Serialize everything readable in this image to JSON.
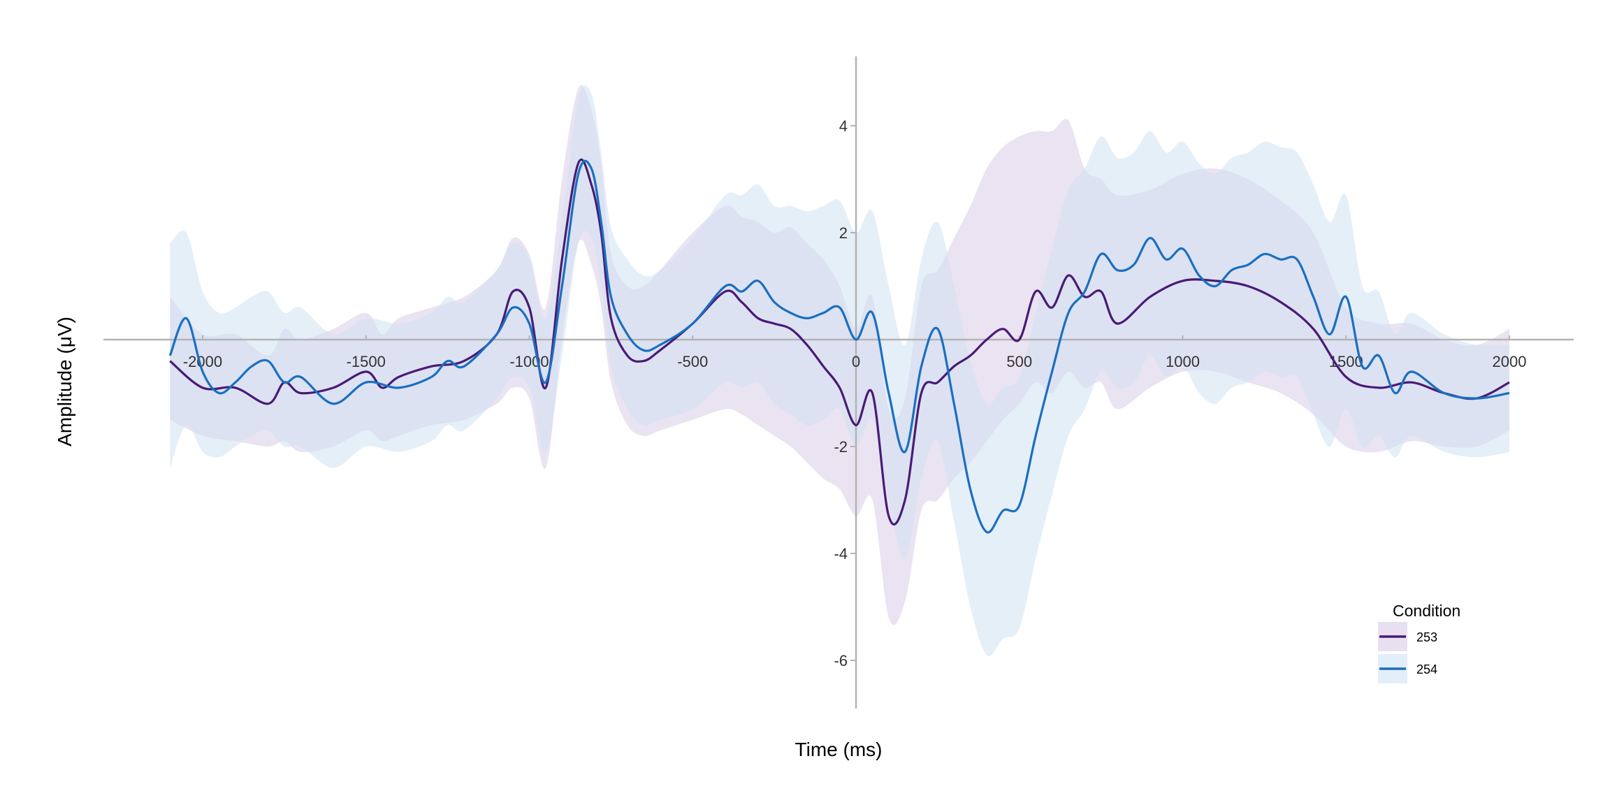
{
  "chart_data": {
    "type": "line",
    "title": "",
    "xlabel": "Time (ms)",
    "ylabel": "Amplitude (μV)",
    "xlim": [
      -2100,
      2200
    ],
    "ylim": [
      -6.9,
      5.3
    ],
    "x_ticks": [
      -2000,
      -1500,
      -1000,
      -500,
      0,
      500,
      1000,
      1500,
      2000
    ],
    "y_ticks": [
      -6,
      -4,
      -2,
      2,
      4
    ],
    "legend": {
      "title": "Condition",
      "position": "bottom-right",
      "entries": [
        "253",
        "254"
      ]
    },
    "series": [
      {
        "name": "253",
        "color": "#4a1a75",
        "band_color": "#d9cce6",
        "x": [
          -2100,
          -2000,
          -1900,
          -1800,
          -1750,
          -1700,
          -1600,
          -1500,
          -1450,
          -1400,
          -1300,
          -1200,
          -1100,
          -1050,
          -1000,
          -950,
          -900,
          -850,
          -810,
          -780,
          -750,
          -700,
          -650,
          -600,
          -500,
          -400,
          -350,
          -300,
          -250,
          -200,
          -150,
          -100,
          -50,
          0,
          50,
          100,
          150,
          200,
          250,
          300,
          350,
          400,
          450,
          500,
          550,
          600,
          650,
          700,
          750,
          800,
          900,
          1000,
          1100,
          1200,
          1300,
          1400,
          1500,
          1600,
          1700,
          1800,
          1900,
          2000
        ],
        "y": [
          -0.4,
          -0.9,
          -0.9,
          -1.2,
          -0.8,
          -1.0,
          -0.9,
          -0.6,
          -0.9,
          -0.7,
          -0.5,
          -0.4,
          0.1,
          0.9,
          0.6,
          -0.9,
          1.5,
          3.3,
          2.9,
          2.0,
          0.4,
          -0.3,
          -0.4,
          -0.2,
          0.3,
          0.9,
          0.7,
          0.4,
          0.3,
          0.2,
          -0.1,
          -0.5,
          -0.9,
          -1.6,
          -1.0,
          -3.3,
          -3.0,
          -1.0,
          -0.8,
          -0.5,
          -0.3,
          0.0,
          0.2,
          0.0,
          0.9,
          0.6,
          1.2,
          0.8,
          0.9,
          0.3,
          0.8,
          1.1,
          1.1,
          1.0,
          0.7,
          0.2,
          -0.7,
          -0.9,
          -0.8,
          -1.0,
          -1.1,
          -0.8
        ],
        "lower": [
          -1.5,
          -1.8,
          -1.9,
          -2.0,
          -1.9,
          -2.1,
          -2.0,
          -1.7,
          -1.9,
          -1.8,
          -1.6,
          -1.5,
          -1.2,
          -0.9,
          -1.1,
          -2.4,
          0.0,
          1.8,
          1.4,
          0.6,
          -0.8,
          -1.6,
          -1.8,
          -1.7,
          -1.5,
          -1.3,
          -1.4,
          -1.6,
          -1.8,
          -2.0,
          -2.3,
          -2.6,
          -2.8,
          -3.3,
          -3.0,
          -5.2,
          -4.9,
          -3.2,
          -3.0,
          -2.6,
          -2.3,
          -1.9,
          -1.5,
          -1.2,
          -0.8,
          -1.0,
          -0.6,
          -0.9,
          -0.8,
          -1.3,
          -0.9,
          -0.6,
          -0.6,
          -0.8,
          -1.0,
          -1.4,
          -2.0,
          -2.1,
          -1.9,
          -2.0,
          -2.0,
          -1.7
        ],
        "upper": [
          0.8,
          0.1,
          0.1,
          -0.3,
          0.2,
          0.0,
          0.2,
          0.5,
          0.1,
          0.4,
          0.6,
          0.8,
          1.3,
          1.9,
          1.6,
          0.6,
          3.0,
          4.7,
          4.3,
          3.3,
          1.6,
          1.0,
          1.0,
          1.3,
          2.0,
          2.5,
          2.3,
          2.2,
          2.0,
          2.1,
          1.8,
          1.5,
          1.0,
          0.2,
          0.8,
          -1.3,
          -1.1,
          1.0,
          1.3,
          1.9,
          2.5,
          3.2,
          3.6,
          3.8,
          3.9,
          3.9,
          4.1,
          3.2,
          3.0,
          2.7,
          2.8,
          3.1,
          3.2,
          3.0,
          2.6,
          2.0,
          0.6,
          0.3,
          0.3,
          0.0,
          -0.1,
          0.2
        ]
      },
      {
        "name": "254",
        "color": "#1a6fc0",
        "band_color": "#cfe2f3",
        "x": [
          -2100,
          -2050,
          -2000,
          -1950,
          -1900,
          -1850,
          -1800,
          -1750,
          -1700,
          -1600,
          -1500,
          -1400,
          -1300,
          -1250,
          -1200,
          -1100,
          -1050,
          -1000,
          -950,
          -900,
          -850,
          -810,
          -780,
          -750,
          -700,
          -650,
          -600,
          -500,
          -400,
          -350,
          -300,
          -250,
          -200,
          -150,
          -100,
          -50,
          0,
          50,
          100,
          150,
          200,
          250,
          300,
          350,
          400,
          450,
          500,
          550,
          600,
          650,
          700,
          750,
          800,
          850,
          900,
          950,
          1000,
          1050,
          1100,
          1150,
          1200,
          1250,
          1300,
          1350,
          1400,
          1450,
          1500,
          1550,
          1600,
          1650,
          1700,
          1800,
          1900,
          2000
        ],
        "y": [
          -0.3,
          0.4,
          -0.6,
          -1.0,
          -0.8,
          -0.5,
          -0.4,
          -0.8,
          -0.7,
          -1.2,
          -0.8,
          -0.9,
          -0.7,
          -0.4,
          -0.5,
          0.1,
          0.6,
          0.3,
          -0.8,
          1.0,
          3.1,
          3.2,
          2.2,
          0.8,
          0.1,
          -0.2,
          -0.1,
          0.3,
          1.0,
          0.9,
          1.1,
          0.7,
          0.5,
          0.4,
          0.5,
          0.6,
          0.0,
          0.5,
          -1.0,
          -2.1,
          -0.5,
          0.2,
          -1.2,
          -2.8,
          -3.6,
          -3.2,
          -3.1,
          -1.8,
          -0.6,
          0.5,
          0.9,
          1.6,
          1.3,
          1.4,
          1.9,
          1.5,
          1.7,
          1.2,
          1.0,
          1.3,
          1.4,
          1.6,
          1.5,
          1.5,
          0.8,
          0.1,
          0.8,
          -0.5,
          -0.3,
          -1.0,
          -0.6,
          -1.0,
          -1.1,
          -1.0
        ],
        "lower": [
          -2.4,
          -1.6,
          -2.1,
          -2.2,
          -2.0,
          -1.8,
          -1.7,
          -2.0,
          -2.0,
          -2.4,
          -2.0,
          -2.1,
          -1.9,
          -1.6,
          -1.7,
          -1.1,
          -0.7,
          -0.9,
          -2.1,
          -0.3,
          1.8,
          1.9,
          1.0,
          -0.5,
          -1.3,
          -1.6,
          -1.5,
          -1.3,
          -0.8,
          -0.9,
          -0.8,
          -1.2,
          -1.4,
          -1.6,
          -1.5,
          -1.3,
          -2.0,
          -1.5,
          -3.0,
          -4.1,
          -2.6,
          -1.9,
          -3.4,
          -5.0,
          -5.9,
          -5.6,
          -5.4,
          -4.1,
          -2.9,
          -1.8,
          -1.3,
          -0.6,
          -0.9,
          -0.8,
          -0.3,
          -0.7,
          -0.5,
          -1.0,
          -1.2,
          -0.9,
          -0.8,
          -0.6,
          -0.7,
          -0.7,
          -1.4,
          -2.0,
          -1.3,
          -2.0,
          -1.8,
          -2.2,
          -1.8,
          -2.1,
          -2.2,
          -2.1
        ],
        "upper": [
          1.8,
          2.0,
          0.9,
          0.5,
          0.6,
          0.8,
          0.9,
          0.5,
          0.6,
          0.1,
          0.4,
          0.3,
          0.5,
          0.8,
          0.7,
          1.3,
          1.8,
          1.5,
          0.4,
          2.2,
          4.5,
          4.6,
          3.5,
          2.1,
          1.5,
          1.2,
          1.3,
          1.9,
          2.7,
          2.7,
          2.9,
          2.5,
          2.5,
          2.4,
          2.5,
          2.6,
          2.0,
          2.4,
          1.0,
          -0.1,
          1.5,
          2.2,
          1.0,
          -0.4,
          -1.2,
          -0.9,
          -0.7,
          0.5,
          1.7,
          2.8,
          3.2,
          3.8,
          3.4,
          3.5,
          3.9,
          3.5,
          3.7,
          3.3,
          3.1,
          3.4,
          3.5,
          3.7,
          3.6,
          3.5,
          2.9,
          2.2,
          2.7,
          1.0,
          0.9,
          0.1,
          0.5,
          0.1,
          -0.1,
          -0.1
        ]
      }
    ]
  }
}
